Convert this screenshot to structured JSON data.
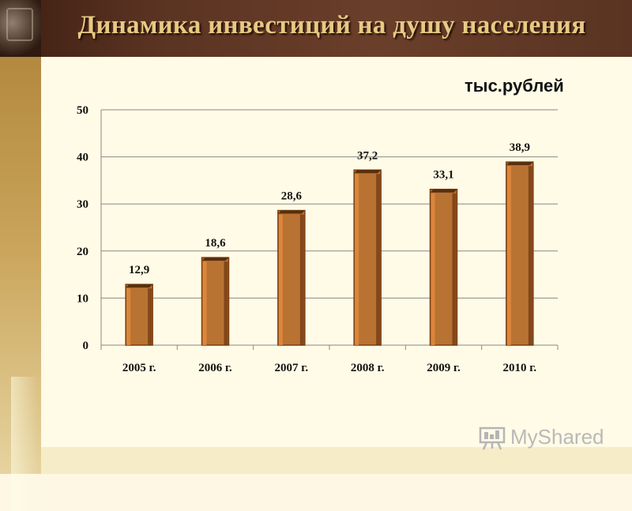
{
  "slide": {
    "title": "Динамика инвестиций на душу населения",
    "unit_label": "тыс.рублей"
  },
  "colors": {
    "bar_fill": "#b87333",
    "bar_edge": "#7a3f12",
    "bar_top": "#5a2e0c",
    "header_bg": "#5b3322",
    "title_text": "#e8c983"
  },
  "watermark": {
    "logo_text": "MyShared",
    "icon": "presentation-board-icon"
  },
  "chart_data": {
    "type": "bar",
    "categories": [
      "2005 г.",
      "2006 г.",
      "2007 г.",
      "2008 г.",
      "2009 г.",
      "2010 г."
    ],
    "values": [
      12.9,
      18.6,
      28.6,
      37.2,
      33.1,
      38.9
    ],
    "value_labels": [
      "12,9",
      "18,6",
      "28,6",
      "37,2",
      "33,1",
      "38,9"
    ],
    "ylim": [
      0,
      50
    ],
    "yticks": [
      0,
      10,
      20,
      30,
      40,
      50
    ],
    "grid": true,
    "legend": "none"
  }
}
